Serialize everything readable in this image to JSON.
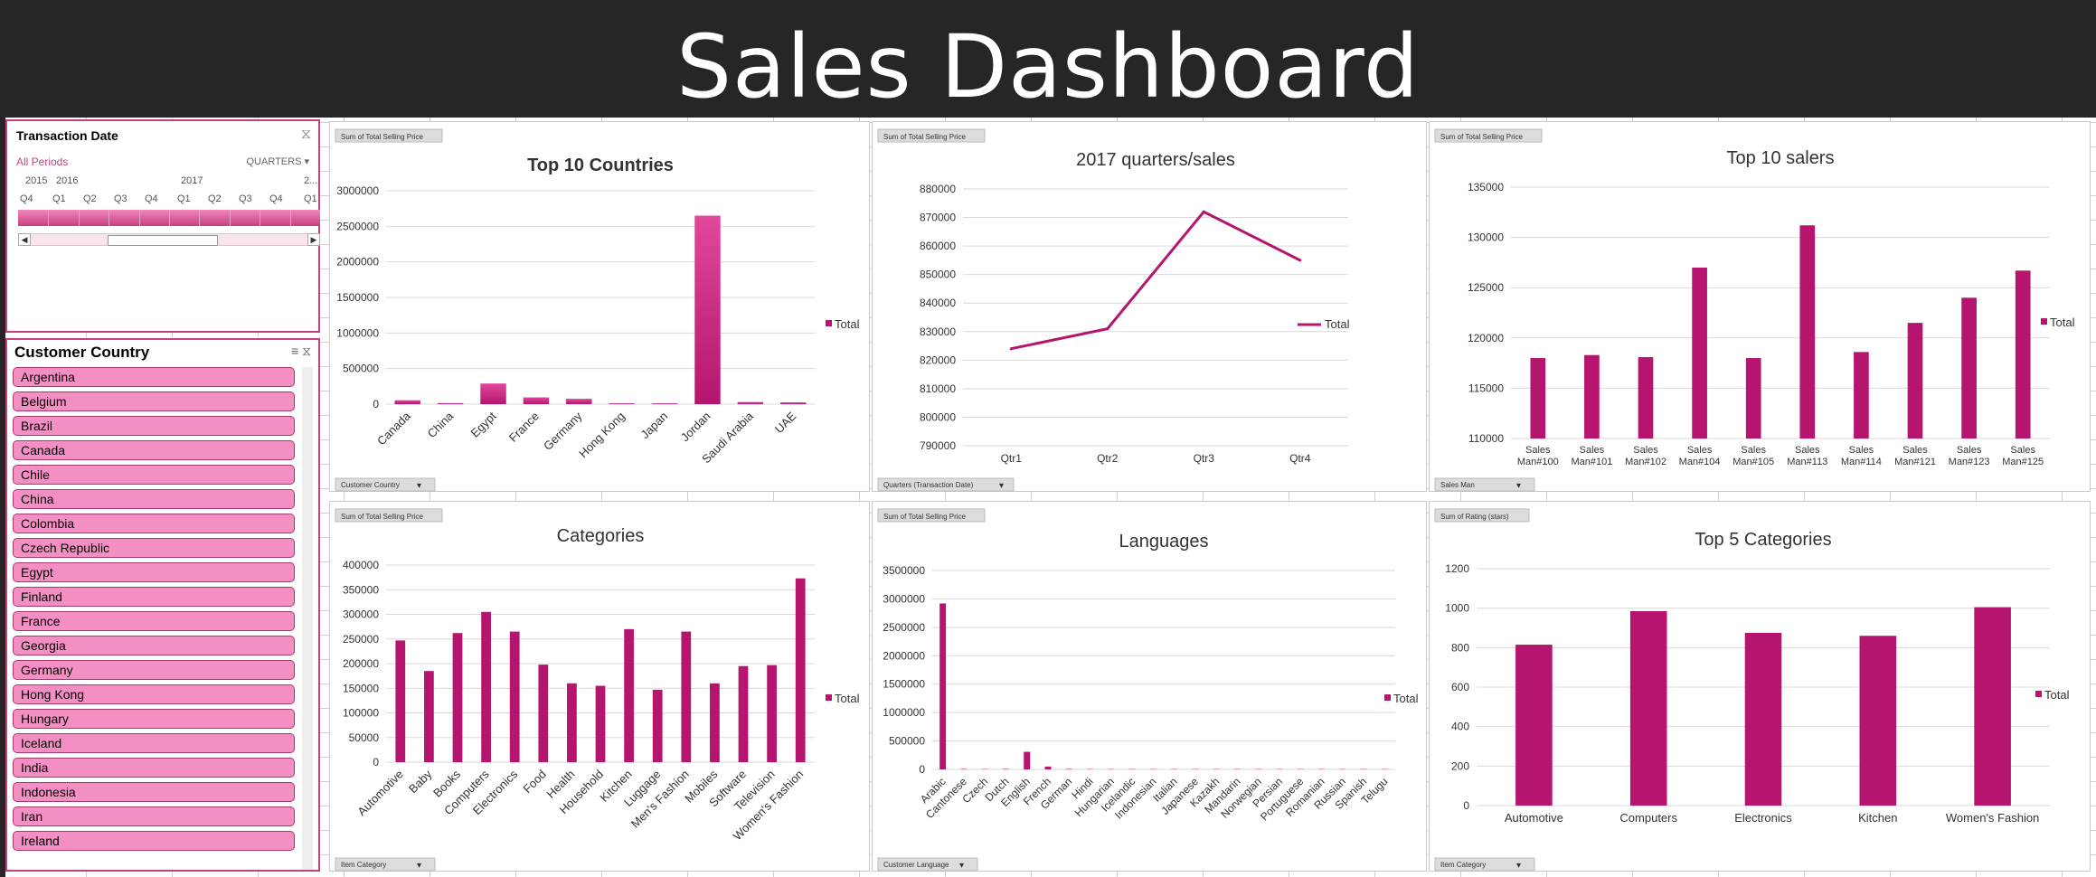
{
  "header": {
    "title": "Sales Dashboard"
  },
  "colors": {
    "accent": "#b5156e",
    "bar_gradient_top": "#e0489b",
    "slicer_item": "#f38fc3",
    "header_bg": "#272525"
  },
  "timeline": {
    "title": "Transaction Date",
    "all_periods": "All Periods",
    "level": "QUARTERS",
    "years": [
      "2015",
      "2016",
      "2017",
      "2..."
    ],
    "quarters": [
      "Q4",
      "Q1",
      "Q2",
      "Q3",
      "Q4",
      "Q1",
      "Q2",
      "Q3",
      "Q4",
      "Q1"
    ]
  },
  "country_slicer": {
    "title": "Customer Country",
    "items": [
      "Argentina",
      "Belgium",
      "Brazil",
      "Canada",
      "Chile",
      "China",
      "Colombia",
      "Czech Republic",
      "Egypt",
      "Finland",
      "France",
      "Georgia",
      "Germany",
      "Hong Kong",
      "Hungary",
      "Iceland",
      "India",
      "Indonesia",
      "Iran",
      "Ireland"
    ]
  },
  "chart_data": [
    {
      "id": "top10-countries",
      "type": "bar",
      "title": "Top 10 Countries",
      "field_button": "Sum of Total Selling Price",
      "axis_button": "Customer Country",
      "categories": [
        "Canada",
        "China",
        "Egypt",
        "France",
        "Germany",
        "Hong Kong",
        "Japan",
        "Jordan",
        "Saudi Arabia",
        "UAE"
      ],
      "series": [
        {
          "name": "Total",
          "values": [
            55000,
            15000,
            290000,
            95000,
            75000,
            12000,
            12000,
            2650000,
            30000,
            25000
          ]
        }
      ],
      "ylim": [
        0,
        3000000
      ],
      "yticks": [
        "0",
        "500000",
        "1000000",
        "1500000",
        "2000000",
        "2500000",
        "3000000"
      ],
      "legend": "right"
    },
    {
      "id": "quarters-2017",
      "type": "line",
      "title": "2017 quarters/sales",
      "field_button": "Sum of Total Selling Price",
      "axis_button": "Quarters (Transaction Date)",
      "categories": [
        "Qtr1",
        "Qtr2",
        "Qtr3",
        "Qtr4"
      ],
      "series": [
        {
          "name": "Total",
          "values": [
            824000,
            831000,
            872000,
            855000
          ]
        }
      ],
      "ylim": [
        790000,
        880000
      ],
      "yticks": [
        "790000",
        "800000",
        "810000",
        "820000",
        "830000",
        "840000",
        "850000",
        "860000",
        "870000",
        "880000"
      ],
      "legend": "right"
    },
    {
      "id": "top10-salers",
      "type": "bar",
      "title": "Top 10 salers",
      "field_button": "Sum of Total Selling Price",
      "axis_button": "Sales Man",
      "categories": [
        "Sales Man#100",
        "Sales Man#101",
        "Sales Man#102",
        "Sales Man#104",
        "Sales Man#105",
        "Sales Man#113",
        "Sales Man#114",
        "Sales Man#121",
        "Sales Man#123",
        "Sales Man#125"
      ],
      "series": [
        {
          "name": "Total",
          "values": [
            118000,
            118300,
            118100,
            127000,
            118000,
            131200,
            118600,
            121500,
            124000,
            126700
          ]
        }
      ],
      "ylim": [
        110000,
        135000
      ],
      "yticks": [
        "110000",
        "115000",
        "120000",
        "125000",
        "130000",
        "135000"
      ],
      "legend": "right"
    },
    {
      "id": "categories",
      "type": "bar",
      "title": "Categories",
      "field_button": "Sum of Total Selling Price",
      "axis_button": "Item Category",
      "categories": [
        "Automotive",
        "Baby",
        "Books",
        "Computers",
        "Electronics",
        "Food",
        "Health",
        "Household",
        "Kitchen",
        "Luggage",
        "Men's Fashion",
        "Mobiles",
        "Software",
        "Television",
        "Women's Fashion"
      ],
      "series": [
        {
          "name": "Total",
          "values": [
            247000,
            185000,
            262000,
            305000,
            265000,
            198000,
            160000,
            155000,
            270000,
            147000,
            265000,
            160000,
            195000,
            197000,
            373000
          ]
        }
      ],
      "ylim": [
        0,
        400000
      ],
      "yticks": [
        "0",
        "50000",
        "100000",
        "150000",
        "200000",
        "250000",
        "300000",
        "350000",
        "400000"
      ],
      "legend": "right"
    },
    {
      "id": "languages",
      "type": "bar",
      "title": "Languages",
      "field_button": "Sum of Total Selling Price",
      "axis_button": "Customer Language",
      "categories": [
        "Arabic",
        "Cantonese",
        "Czech",
        "Dutch",
        "English",
        "French",
        "German",
        "Hindi",
        "Hungarian",
        "Icelandic",
        "Indonesian",
        "Italian",
        "Japanese",
        "Kazakh",
        "Mandarin",
        "Norwegian",
        "Persian",
        "Portuguese",
        "Romanian",
        "Russian",
        "Spanish",
        "Telugu"
      ],
      "series": [
        {
          "name": "Total",
          "values": [
            2920000,
            8000,
            6000,
            8000,
            310000,
            50000,
            8000,
            6000,
            6000,
            6000,
            6000,
            6000,
            6000,
            6000,
            6000,
            6000,
            6000,
            6000,
            6000,
            6000,
            6000,
            6000
          ]
        }
      ],
      "ylim": [
        0,
        3500000
      ],
      "yticks": [
        "0",
        "500000",
        "1000000",
        "1500000",
        "2000000",
        "2500000",
        "3000000",
        "3500000"
      ],
      "legend": "right"
    },
    {
      "id": "top5-categories",
      "type": "bar",
      "title": "Top 5 Categories",
      "field_button": "Sum of Rating (stars)",
      "axis_button": "Item Category",
      "categories": [
        "Automotive",
        "Computers",
        "Electronics",
        "Kitchen",
        "Women's Fashion"
      ],
      "series": [
        {
          "name": "Total",
          "values": [
            815,
            985,
            875,
            860,
            1005
          ]
        }
      ],
      "ylim": [
        0,
        1200
      ],
      "yticks": [
        "0",
        "200",
        "400",
        "600",
        "800",
        "1000",
        "1200"
      ],
      "legend": "right"
    }
  ]
}
